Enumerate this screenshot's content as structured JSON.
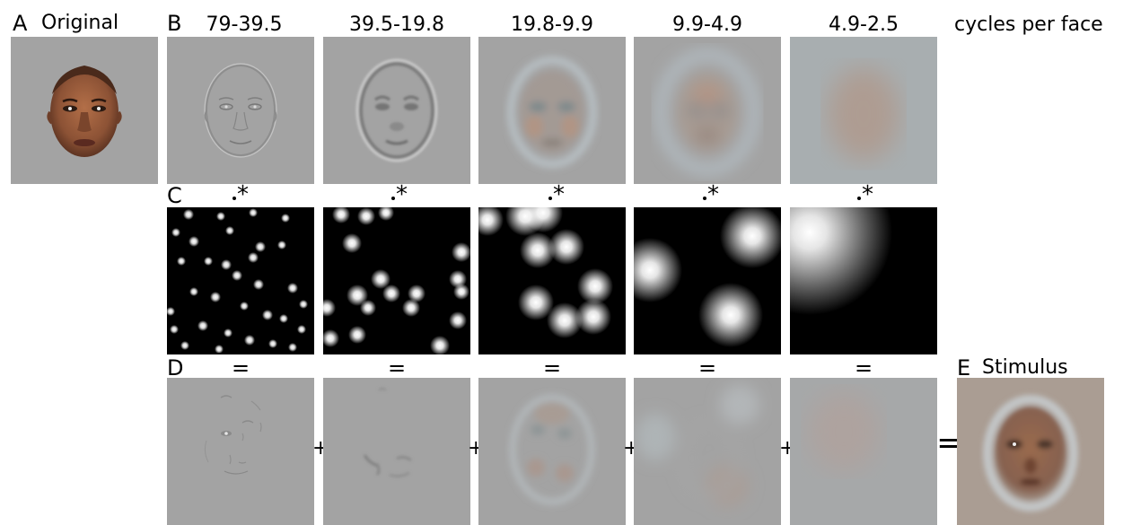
{
  "panels": {
    "A": {
      "letter": "A",
      "title": "Original"
    },
    "B": {
      "letter": "B",
      "unit": "cycles per face",
      "bands": [
        "79-39.5",
        "39.5-19.8",
        "19.8-9.9",
        "9.9-4.9",
        "4.9-2.5"
      ]
    },
    "C": {
      "letter": "C",
      "symbol": "*"
    },
    "D": {
      "letter": "D",
      "equals": "=",
      "plus": "+"
    },
    "E": {
      "letter": "E",
      "title": "Stimulus",
      "equals": "="
    }
  },
  "colors": {
    "background": "#a3a3a3",
    "skin": "#8a5a3c",
    "mask_background": "#000000",
    "mask_blob": "#ffffff"
  }
}
